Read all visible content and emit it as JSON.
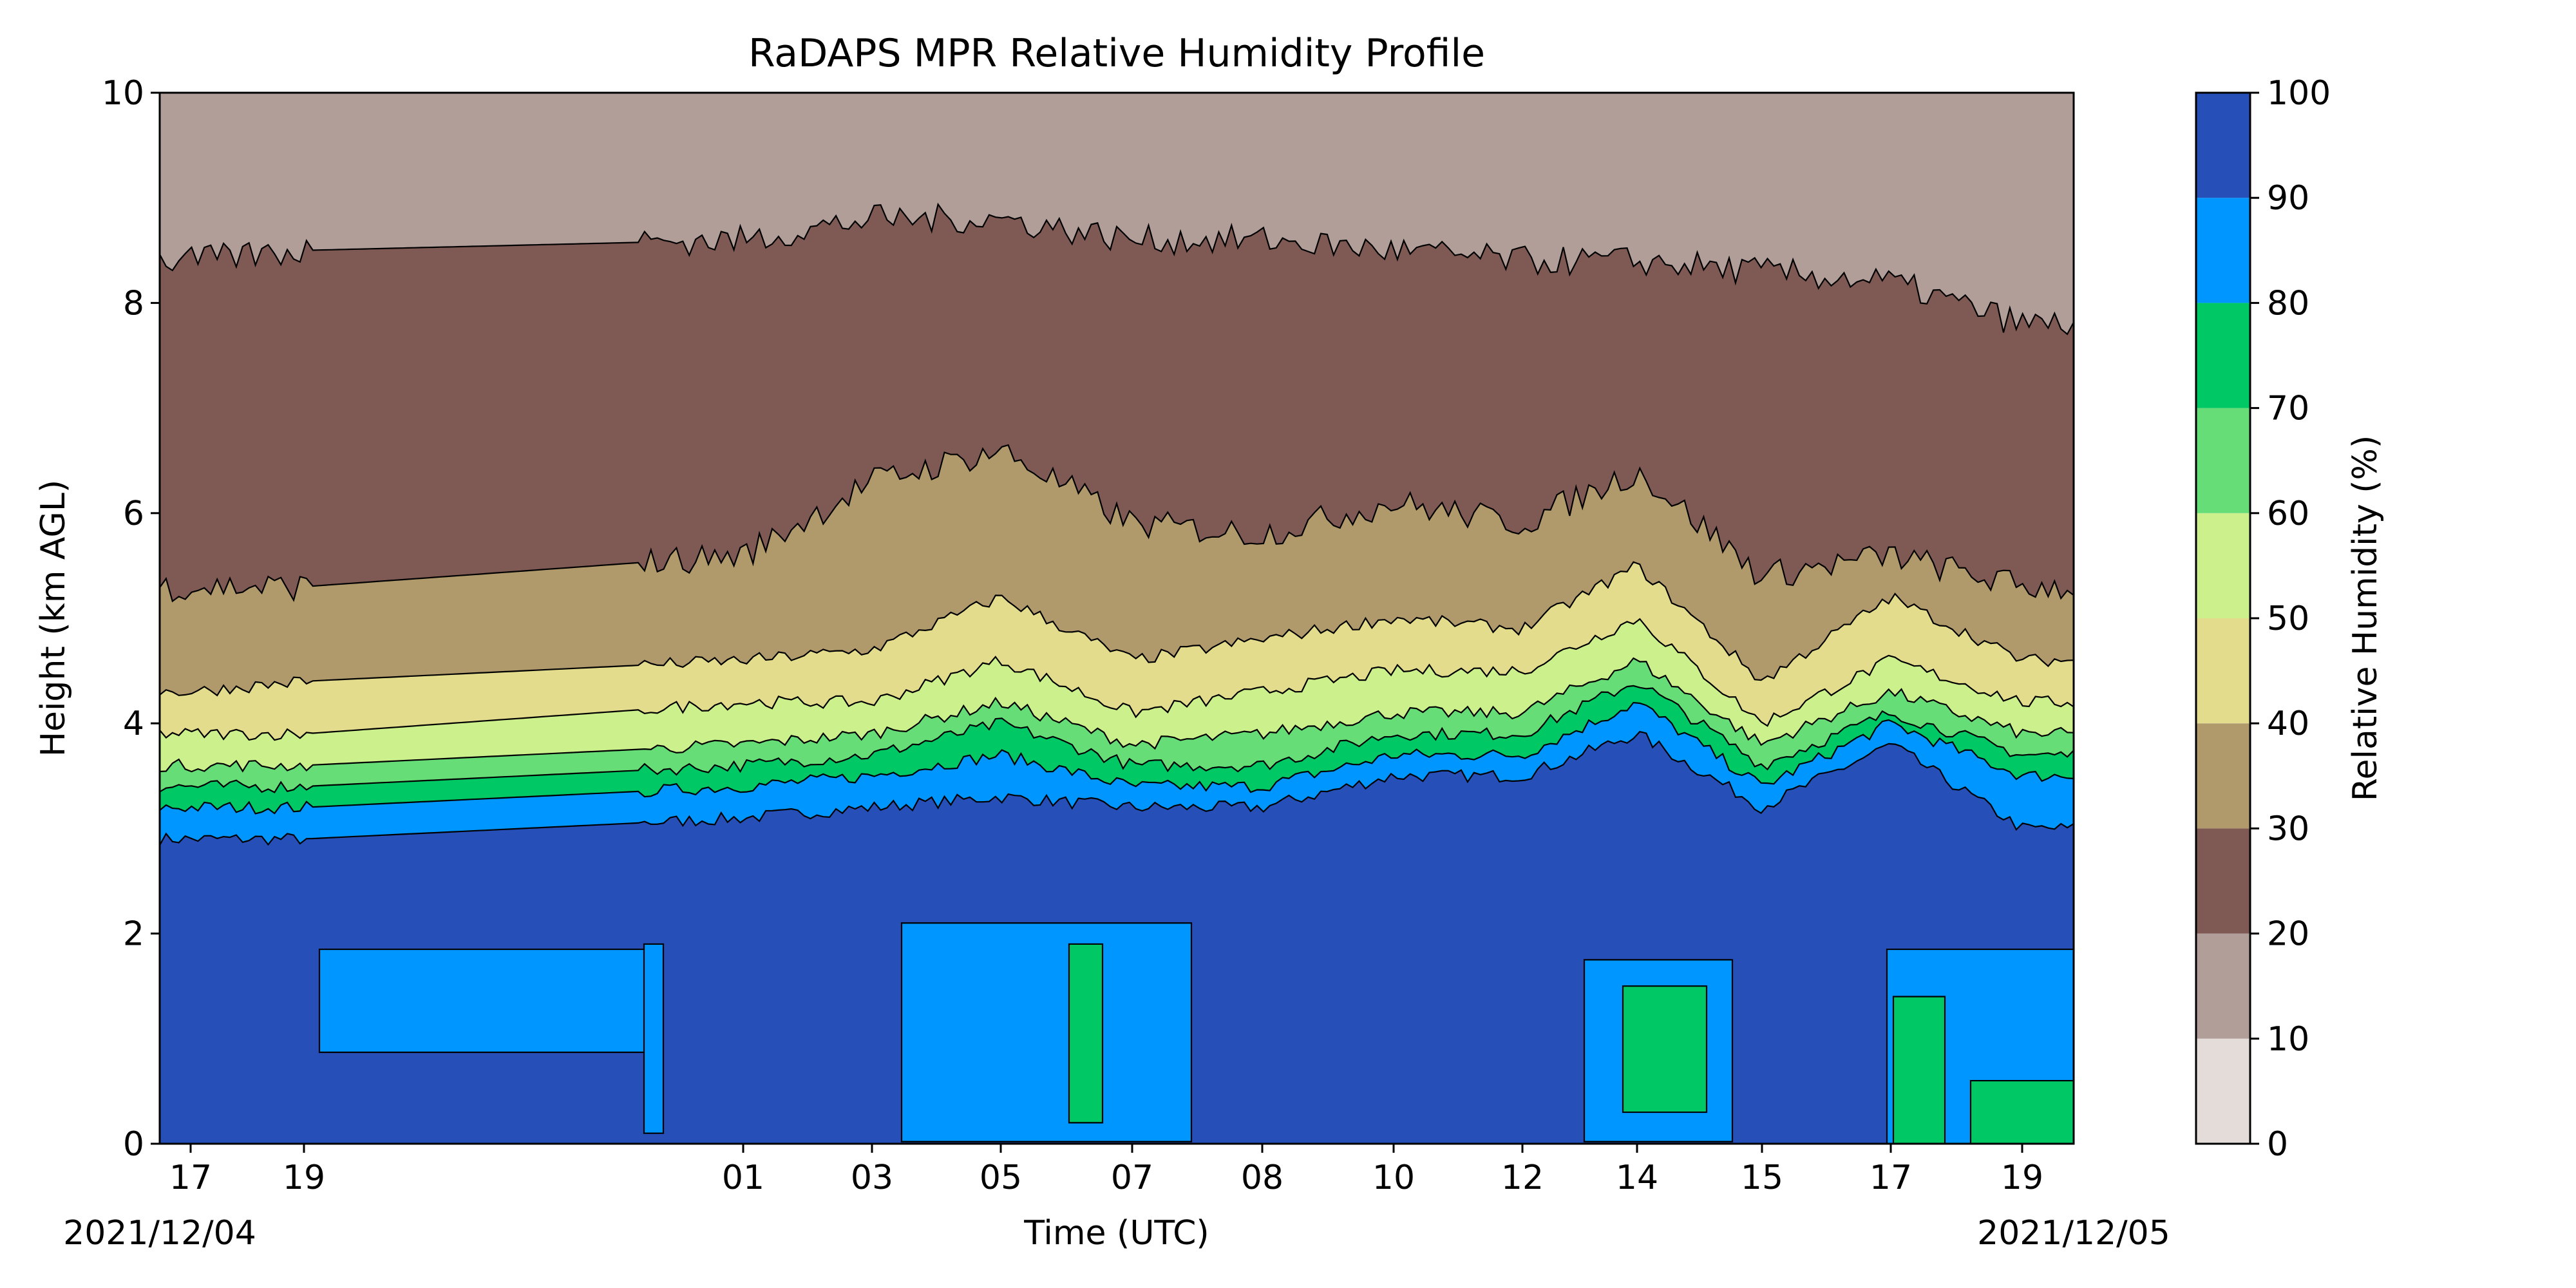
{
  "chart_data": {
    "type": "heatmap",
    "subtype": "filled-contour",
    "title": "RaDAPS MPR Relative Humidity Profile",
    "xlabel": "Time (UTC)",
    "ylabel": "Height (km AGL)",
    "ylim": [
      0,
      10
    ],
    "yticks": [
      "0",
      "2",
      "4",
      "6",
      "8",
      "10"
    ],
    "xticks": [
      "17",
      "19",
      "01",
      "03",
      "05",
      "07",
      "08",
      "10",
      "12",
      "14",
      "15",
      "17",
      "19"
    ],
    "x_start_label": "2021/12/04",
    "x_end_label": "2021/12/05",
    "colorbar": {
      "label": "Relative Humidity (%)",
      "ticks": [
        "0",
        "10",
        "20",
        "30",
        "40",
        "50",
        "60",
        "70",
        "80",
        "90",
        "100"
      ],
      "levels": [
        0,
        10,
        20,
        30,
        40,
        50,
        60,
        70,
        80,
        90,
        100
      ],
      "colors": [
        "#e3dcd9",
        "#b19e99",
        "#7f5a54",
        "#b09a6c",
        "#e3dc8c",
        "#cbf08c",
        "#66dd77",
        "#00c864",
        "#0096ff",
        "#2650b8"
      ]
    },
    "contour_boundaries_km": {
      "description": "approximate height of each RH contour level along time (13 samples matching x ticks)",
      "rh90": [
        2.9,
        2.9,
        3.1,
        3.2,
        3.3,
        3.2,
        3.2,
        3.5,
        3.5,
        3.9,
        3.2,
        3.8,
        3.0
      ],
      "rh80": [
        3.2,
        3.2,
        3.4,
        3.5,
        3.7,
        3.4,
        3.4,
        3.7,
        3.7,
        4.2,
        3.4,
        4.0,
        3.5
      ],
      "rh70": [
        3.4,
        3.4,
        3.6,
        3.7,
        4.0,
        3.6,
        3.6,
        3.9,
        3.9,
        4.4,
        3.6,
        4.1,
        3.7
      ],
      "rh60": [
        3.6,
        3.6,
        3.8,
        3.9,
        4.2,
        3.8,
        3.9,
        4.1,
        4.1,
        4.6,
        3.8,
        4.3,
        3.9
      ],
      "rh50": [
        3.9,
        3.9,
        4.2,
        4.2,
        4.6,
        4.1,
        4.3,
        4.5,
        4.5,
        5.0,
        4.0,
        4.6,
        4.2
      ],
      "rh40": [
        4.3,
        4.4,
        4.6,
        4.7,
        5.2,
        4.6,
        4.8,
        5.0,
        4.9,
        5.5,
        4.4,
        5.2,
        4.6
      ],
      "rh30": [
        5.3,
        5.3,
        5.6,
        6.3,
        6.6,
        5.9,
        5.8,
        6.1,
        5.9,
        6.4,
        5.4,
        5.6,
        5.3
      ],
      "rh20": [
        8.4,
        8.5,
        8.6,
        8.8,
        8.8,
        8.6,
        8.6,
        8.5,
        8.4,
        8.4,
        8.3,
        8.2,
        7.8
      ]
    }
  }
}
